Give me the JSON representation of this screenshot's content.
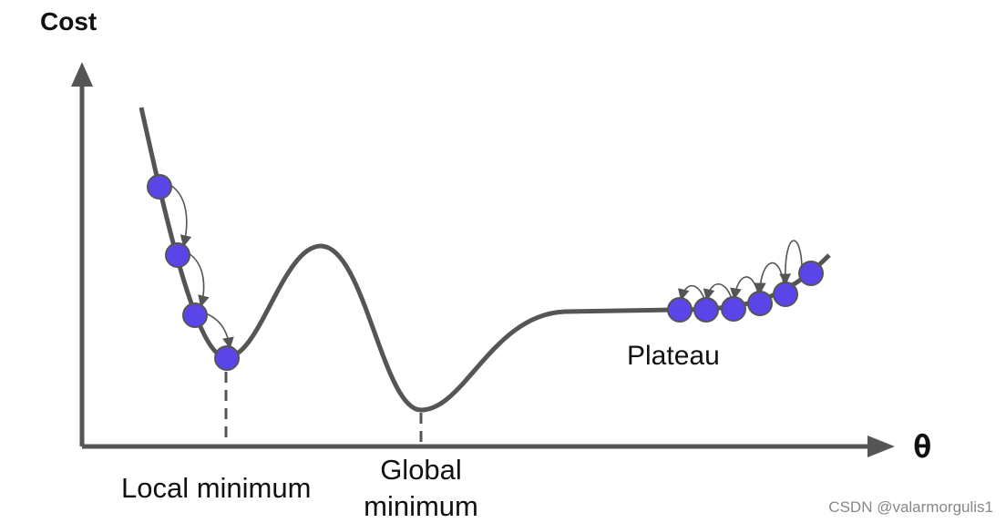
{
  "axes": {
    "y_label": "Cost",
    "x_label": "θ"
  },
  "labels": {
    "local_minimum": "Local minimum",
    "global_minimum": [
      "Global",
      "minimum"
    ],
    "plateau": "Plateau"
  },
  "watermark": "CSDN @valarmorgulis1"
}
